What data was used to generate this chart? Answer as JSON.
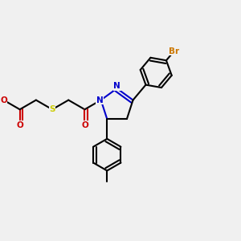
{
  "bg_color": "#f0f0f0",
  "bond_color": "#000000",
  "n_color": "#0000cc",
  "o_color": "#cc0000",
  "s_color": "#cccc00",
  "br_color": "#cc7700",
  "lw": 1.5,
  "dbg": 0.013,
  "fs": 7.5,
  "figsize": [
    3.0,
    3.0
  ],
  "dpi": 100,
  "xlim": [
    0.0,
    1.0
  ],
  "ylim": [
    0.0,
    1.0
  ]
}
